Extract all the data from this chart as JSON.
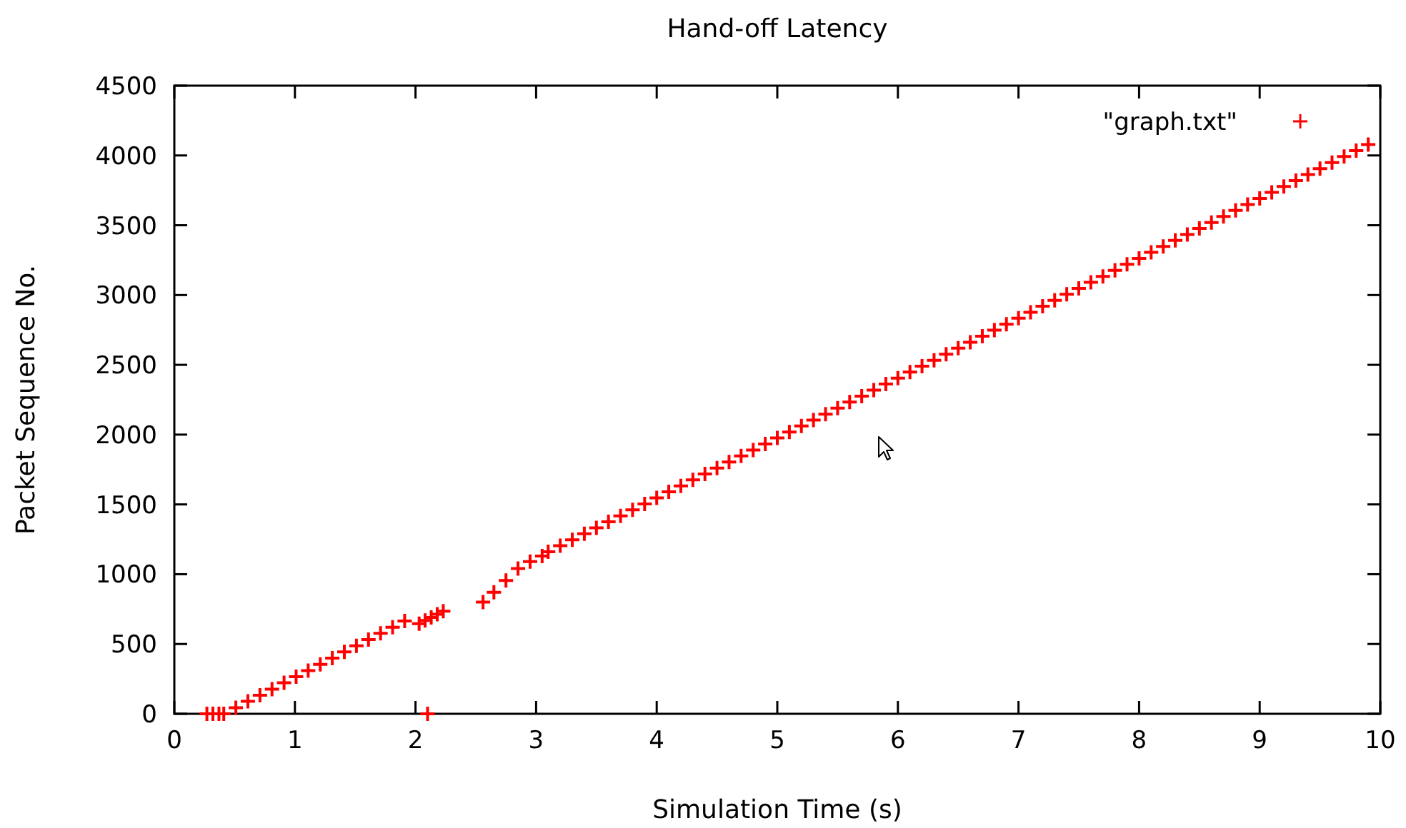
{
  "chart_data": {
    "type": "scatter",
    "title": "Hand-off Latency",
    "xlabel": "Simulation Time (s)",
    "ylabel": "Packet Sequence No.",
    "xlim": [
      0,
      10
    ],
    "xticks": [
      0,
      1,
      2,
      3,
      4,
      5,
      6,
      7,
      8,
      9,
      10
    ],
    "ylim": [
      0,
      4500
    ],
    "yticks": [
      0,
      500,
      1000,
      1500,
      2000,
      2500,
      3000,
      3500,
      4000,
      4500
    ],
    "grid": false,
    "legend": "top right",
    "marker": "cross",
    "series": [
      {
        "name": "\"graph.txt\"",
        "color": "#ff0000",
        "x": [
          0.27,
          0.32,
          0.37,
          0.41,
          0.51,
          0.61,
          0.71,
          0.81,
          0.91,
          1.01,
          1.11,
          1.21,
          1.31,
          1.41,
          1.51,
          1.61,
          1.71,
          1.81,
          1.91,
          2.03,
          2.08,
          2.1,
          2.13,
          2.18,
          2.23,
          2.56,
          2.65,
          2.75,
          2.85,
          2.95,
          3.05,
          3.1,
          3.2,
          3.3,
          3.4,
          3.5,
          3.6,
          3.7,
          3.8,
          3.9,
          4.0,
          4.1,
          4.2,
          4.3,
          4.4,
          4.5,
          4.6,
          4.7,
          4.8,
          4.9,
          5.0,
          5.1,
          5.2,
          5.3,
          5.4,
          5.5,
          5.6,
          5.7,
          5.8,
          5.9,
          6.0,
          6.1,
          6.2,
          6.3,
          6.4,
          6.5,
          6.6,
          6.7,
          6.8,
          6.9,
          7.0,
          7.1,
          7.2,
          7.3,
          7.4,
          7.5,
          7.6,
          7.7,
          7.8,
          7.9,
          8.0,
          8.1,
          8.2,
          8.3,
          8.4,
          8.5,
          8.6,
          8.7,
          8.8,
          8.9,
          9.0,
          9.1,
          9.2,
          9.3,
          9.4,
          9.5,
          9.6,
          9.7,
          9.8,
          9.9
        ],
        "values": [
          0,
          0,
          0,
          0,
          44,
          89,
          133,
          177,
          222,
          266,
          310,
          354,
          399,
          443,
          487,
          532,
          576,
          620,
          665,
          645,
          668,
          0,
          690,
          713,
          735,
          800,
          870,
          955,
          1040,
          1090,
          1130,
          1161,
          1204,
          1247,
          1290,
          1332,
          1375,
          1418,
          1461,
          1504,
          1547,
          1590,
          1633,
          1676,
          1718,
          1761,
          1804,
          1847,
          1890,
          1933,
          1976,
          2019,
          2062,
          2104,
          2147,
          2190,
          2233,
          2276,
          2319,
          2362,
          2405,
          2448,
          2490,
          2533,
          2576,
          2619,
          2662,
          2705,
          2748,
          2791,
          2834,
          2877,
          2920,
          2962,
          3005,
          3048,
          3091,
          3134,
          3177,
          3220,
          3263,
          3306,
          3348,
          3391,
          3434,
          3477,
          3520,
          3563,
          3606,
          3649,
          3692,
          3735,
          3778,
          3820,
          3863,
          3906,
          3949,
          3992,
          4035,
          4078
        ]
      }
    ]
  }
}
